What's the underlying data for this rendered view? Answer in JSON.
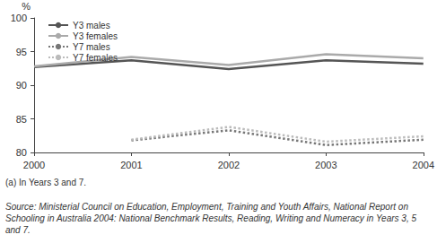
{
  "chart_data": {
    "type": "line",
    "y_label": "%",
    "categories": [
      "2000",
      "2001",
      "2002",
      "2003",
      "2004"
    ],
    "series": [
      {
        "name": "Y3 males",
        "color": "#555555",
        "line_style": "solid",
        "values": [
          92.7,
          93.7,
          92.4,
          93.7,
          93.2
        ]
      },
      {
        "name": "Y3 females",
        "color": "#aaaaaa",
        "line_style": "solid",
        "values": [
          92.8,
          94.2,
          93.0,
          94.6,
          94.0
        ]
      },
      {
        "name": "Y7 males",
        "color": "#777777",
        "line_style": "dotted",
        "values": [
          null,
          81.8,
          83.3,
          81.1,
          81.9
        ]
      },
      {
        "name": "Y7 females",
        "color": "#bbbbbb",
        "line_style": "dotted",
        "values": [
          null,
          81.9,
          83.8,
          81.6,
          82.4
        ]
      }
    ],
    "ylim": [
      80,
      100
    ],
    "yticks": [
      80,
      85,
      90,
      95,
      100
    ],
    "grid": false,
    "legend": "top-left",
    "marker": "none",
    "annotations": [
      "(a) In Years 3 and 7.",
      "Source: Ministerial Council on Education, Employment, Training and Youth Affairs, National Report on Schooling in Australia 2004: National Benchmark Results, Reading, Writing and Numeracy in Years 3, 5 and 7."
    ]
  }
}
